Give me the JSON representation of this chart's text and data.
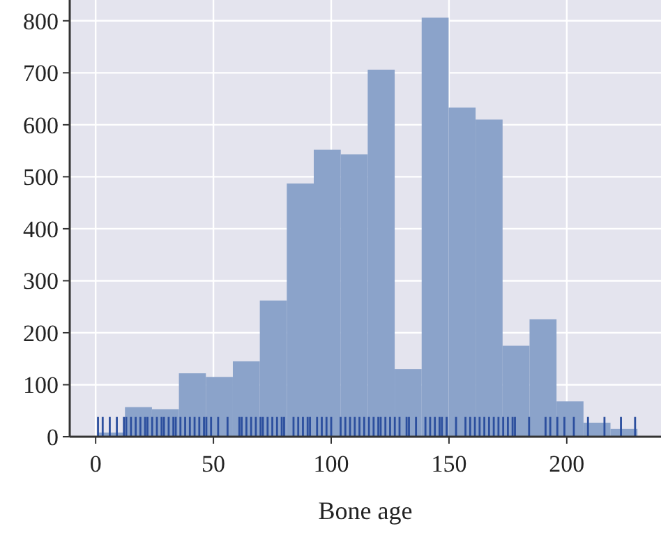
{
  "chart_data": {
    "type": "histogram",
    "xlabel": "Bone age",
    "bins": [
      1,
      12.45,
      23.9,
      35.35,
      46.8,
      58.25,
      69.7,
      81.15,
      92.6,
      104.05,
      115.5,
      126.95,
      138.4,
      149.85,
      161.3,
      172.75,
      184.2,
      195.65,
      207.1,
      218.55,
      230
    ],
    "values": [
      8,
      57,
      53,
      122,
      115,
      145,
      262,
      487,
      552,
      543,
      706,
      130,
      806,
      633,
      610,
      175,
      226,
      68,
      27,
      15
    ],
    "color": "#8ba3ca",
    "series": [
      {
        "type": "bar",
        "color": "#2c4f9e",
        "values": [
          38,
          38,
          38,
          38,
          38,
          38,
          38,
          38,
          38,
          38,
          38,
          38,
          38,
          38,
          38,
          38,
          38,
          38,
          38,
          38,
          38,
          38,
          38,
          38,
          38,
          38,
          38,
          38,
          38,
          38,
          38,
          38,
          38,
          38,
          38,
          38,
          38,
          38,
          38,
          38,
          38,
          38,
          38,
          38,
          38,
          38,
          38,
          38,
          38,
          38,
          38,
          38,
          38,
          38,
          38,
          38,
          38,
          38,
          38,
          38,
          38,
          38,
          38,
          38,
          38,
          38,
          38,
          38,
          38,
          38,
          38,
          38,
          38,
          38,
          38,
          38,
          38,
          38,
          38,
          38,
          38,
          38,
          38,
          38,
          38,
          38,
          38,
          38,
          38,
          38,
          38,
          38,
          38,
          38,
          38
        ],
        "x": [
          1,
          3,
          6,
          9,
          12,
          13,
          15,
          17,
          19,
          21,
          22,
          24,
          26,
          28,
          29,
          31,
          33,
          34,
          36,
          38,
          40,
          42,
          44,
          46,
          47,
          49,
          52,
          56,
          61,
          62,
          64,
          66,
          68,
          70,
          71,
          73,
          75,
          77,
          79,
          80,
          84,
          86,
          88,
          90,
          91,
          94,
          96,
          98,
          100,
          104,
          106,
          108,
          110,
          112,
          114,
          116,
          118,
          120,
          121,
          123,
          125,
          127,
          129,
          132,
          133,
          136,
          140,
          142,
          144,
          146,
          147,
          149,
          153,
          157,
          159,
          161,
          163,
          165,
          167,
          169,
          171,
          173,
          175,
          177,
          178,
          184,
          191,
          193,
          196,
          199,
          203,
          209,
          216,
          223,
          229
        ]
      }
    ],
    "xlim": [
      -11,
      240
    ],
    "ylim": [
      0,
      840
    ],
    "xticks": [
      0,
      50,
      100,
      150,
      200
    ],
    "yticks": [
      0,
      100,
      200,
      300,
      400,
      500,
      600,
      700,
      800
    ],
    "grid": true
  }
}
